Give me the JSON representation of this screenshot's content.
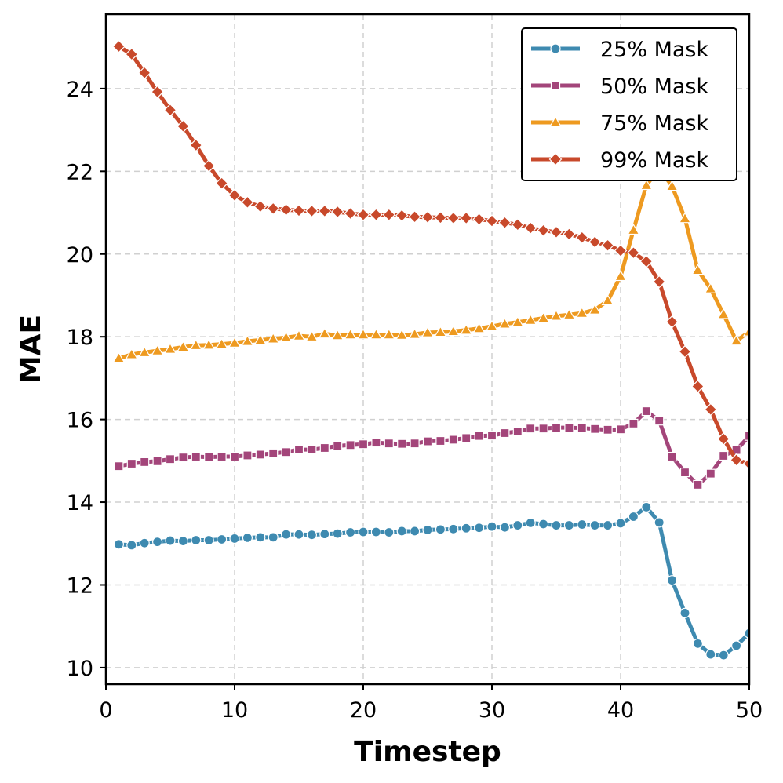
{
  "chart_data": {
    "type": "line",
    "title": "",
    "xlabel": "Timestep",
    "ylabel": "MAE",
    "xlim": [
      0,
      50
    ],
    "ylim": [
      9.6,
      25.8
    ],
    "xticks": [
      0,
      10,
      20,
      30,
      40,
      50
    ],
    "yticks": [
      10,
      12,
      14,
      16,
      18,
      20,
      22,
      24
    ],
    "grid": true,
    "legend_position": "top-right",
    "x": [
      1,
      2,
      3,
      4,
      5,
      6,
      7,
      8,
      9,
      10,
      11,
      12,
      13,
      14,
      15,
      16,
      17,
      18,
      19,
      20,
      21,
      22,
      23,
      24,
      25,
      26,
      27,
      28,
      29,
      30,
      31,
      32,
      33,
      34,
      35,
      36,
      37,
      38,
      39,
      40,
      41,
      42,
      43,
      44,
      45,
      46,
      47,
      48,
      49,
      50
    ],
    "series": [
      {
        "name": "25% Mask",
        "color": "#3e8ab0",
        "marker": "circle",
        "values": [
          12.98,
          12.96,
          13.01,
          13.04,
          13.07,
          13.06,
          13.08,
          13.08,
          13.1,
          13.12,
          13.14,
          13.15,
          13.15,
          13.22,
          13.22,
          13.21,
          13.23,
          13.24,
          13.27,
          13.28,
          13.28,
          13.27,
          13.3,
          13.3,
          13.33,
          13.34,
          13.35,
          13.37,
          13.38,
          13.41,
          13.39,
          13.44,
          13.5,
          13.47,
          13.44,
          13.44,
          13.46,
          13.44,
          13.44,
          13.49,
          13.65,
          13.88,
          13.51,
          12.11,
          11.32,
          10.58,
          10.32,
          10.3,
          10.53,
          10.83
        ]
      },
      {
        "name": "50% Mask",
        "color": "#a3457a",
        "marker": "square",
        "values": [
          14.87,
          14.93,
          14.97,
          14.99,
          15.04,
          15.08,
          15.1,
          15.09,
          15.1,
          15.1,
          15.13,
          15.15,
          15.18,
          15.21,
          15.27,
          15.27,
          15.31,
          15.36,
          15.38,
          15.4,
          15.44,
          15.42,
          15.41,
          15.42,
          15.47,
          15.48,
          15.51,
          15.55,
          15.6,
          15.61,
          15.67,
          15.71,
          15.78,
          15.78,
          15.8,
          15.8,
          15.79,
          15.77,
          15.75,
          15.76,
          15.9,
          16.2,
          15.97,
          15.1,
          14.72,
          14.42,
          14.69,
          15.12,
          15.26,
          15.6
        ]
      },
      {
        "name": "75% Mask",
        "color": "#ee9a20",
        "marker": "triangle",
        "values": [
          17.48,
          17.57,
          17.62,
          17.66,
          17.7,
          17.75,
          17.79,
          17.8,
          17.82,
          17.85,
          17.89,
          17.92,
          17.95,
          17.98,
          18.02,
          18.0,
          18.07,
          18.03,
          18.05,
          18.05,
          18.05,
          18.05,
          18.04,
          18.06,
          18.1,
          18.11,
          18.13,
          18.16,
          18.2,
          18.25,
          18.31,
          18.35,
          18.4,
          18.45,
          18.5,
          18.53,
          18.57,
          18.65,
          18.87,
          19.46,
          20.58,
          21.66,
          22.08,
          21.64,
          20.86,
          19.61,
          19.16,
          18.54,
          17.9,
          18.12
        ]
      },
      {
        "name": "99% Mask",
        "color": "#c8492b",
        "marker": "diamond",
        "values": [
          25.02,
          24.83,
          24.38,
          23.92,
          23.48,
          23.09,
          22.63,
          22.13,
          21.71,
          21.42,
          21.25,
          21.15,
          21.1,
          21.07,
          21.05,
          21.04,
          21.04,
          21.02,
          20.98,
          20.95,
          20.95,
          20.95,
          20.93,
          20.9,
          20.89,
          20.88,
          20.87,
          20.87,
          20.84,
          20.8,
          20.76,
          20.71,
          20.63,
          20.57,
          20.53,
          20.48,
          20.4,
          20.29,
          20.21,
          20.08,
          20.03,
          19.82,
          19.33,
          18.36,
          17.64,
          16.8,
          16.24,
          15.53,
          15.02,
          14.93
        ]
      }
    ]
  }
}
